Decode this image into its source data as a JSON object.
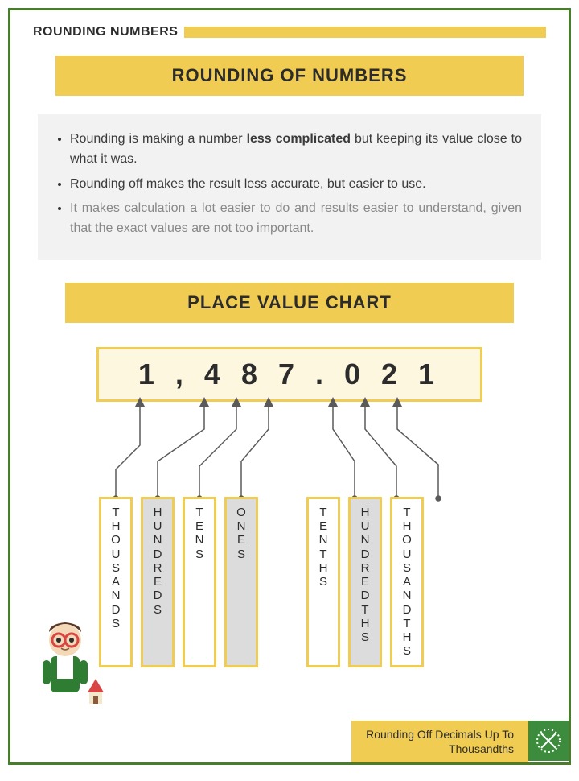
{
  "colors": {
    "border": "#4a7c2e",
    "accent": "#f0cc52",
    "num_bg": "#fef7e0",
    "info_bg": "#f2f2f2",
    "text": "#2c2c2c",
    "gray_text": "#888888",
    "shade": "#dcdcdc",
    "icon_bg": "#3d8b3d",
    "arrow": "#5a5a5a"
  },
  "header": {
    "section_label": "ROUNDING NUMBERS",
    "title": "ROUNDING OF NUMBERS"
  },
  "bullets": {
    "b1_prefix": "Rounding is making a number ",
    "b1_bold": "less complicated",
    "b1_suffix": " but keeping its value close to what it was.",
    "b2": "Rounding off makes the result  less accurate, but easier to use.",
    "b3": "It makes calculation a lot easier to do and results easier to understand, given that the exact values are not too important."
  },
  "chart": {
    "title": "PLACE VALUE CHART",
    "number": "1 , 4 8 7 . 0 2 1",
    "labels": [
      {
        "text": "THOUSANDS",
        "shaded": false
      },
      {
        "text": "HUNDREDS",
        "shaded": true
      },
      {
        "text": "TENS",
        "shaded": false
      },
      {
        "text": "ONES",
        "shaded": true
      },
      {
        "text": "TENTHS",
        "shaded": false
      },
      {
        "text": "HUNDREDTHS",
        "shaded": true
      },
      {
        "text": "THOUSANDTHS",
        "shaded": false
      }
    ]
  },
  "footer": {
    "line1": "Rounding Off Decimals Up To",
    "line2": "Thousandths"
  }
}
